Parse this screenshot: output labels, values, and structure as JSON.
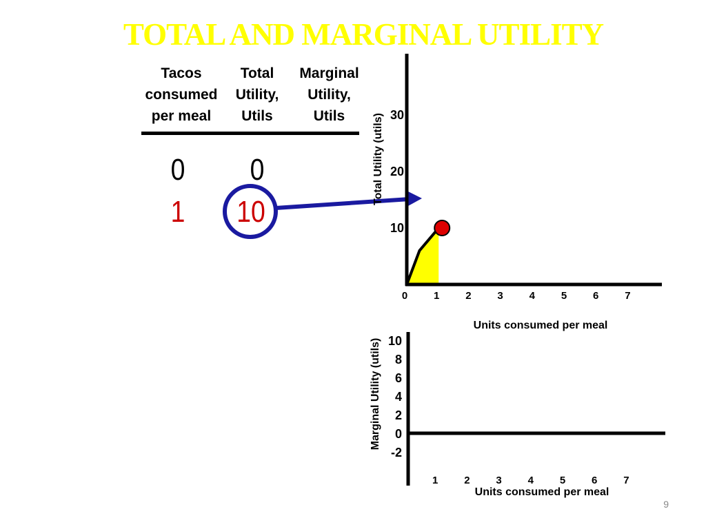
{
  "slide": {
    "title": "TOTAL AND MARGINAL UTILITY",
    "page_number": "9",
    "colors": {
      "title": "#ffff00",
      "highlight_row": "#cc0000",
      "circle": "#1a1aa0",
      "point": "#dd0000",
      "area": "#ffff00"
    }
  },
  "table": {
    "headers": [
      [
        "Tacos",
        "consumed",
        "per meal"
      ],
      [
        "Total",
        "Utility,",
        "Utils"
      ],
      [
        "Marginal",
        "Utility,",
        "Utils"
      ]
    ],
    "rows": [
      {
        "tacos": "0",
        "total": "0"
      },
      {
        "tacos": "1",
        "total": "10"
      }
    ]
  },
  "chart_data": [
    {
      "type": "line",
      "ylabel": "Total Utility (utils)",
      "xlabel": "Units consumed per meal",
      "x_ticks": [
        "0",
        "1",
        "2",
        "3",
        "4",
        "5",
        "6",
        "7"
      ],
      "y_ticks": [
        "10",
        "20",
        "30"
      ],
      "xlim": [
        0,
        8
      ],
      "ylim": [
        0,
        35
      ],
      "series": [
        {
          "x": [
            0,
            0.4,
            1
          ],
          "y": [
            0,
            6,
            10
          ]
        }
      ],
      "highlight_point": {
        "x": 1,
        "y": 10
      },
      "shaded_area": {
        "from_x": 0,
        "to_x": 1
      }
    },
    {
      "type": "bar",
      "ylabel": "Marginal Utility (utils)",
      "xlabel": "Units consumed per meal",
      "x_ticks": [
        "1",
        "2",
        "3",
        "4",
        "5",
        "6",
        "7"
      ],
      "y_ticks": [
        "10",
        "8",
        "6",
        "4",
        "2",
        "0",
        "-2"
      ],
      "ylim": [
        -3,
        10
      ],
      "series": []
    }
  ]
}
